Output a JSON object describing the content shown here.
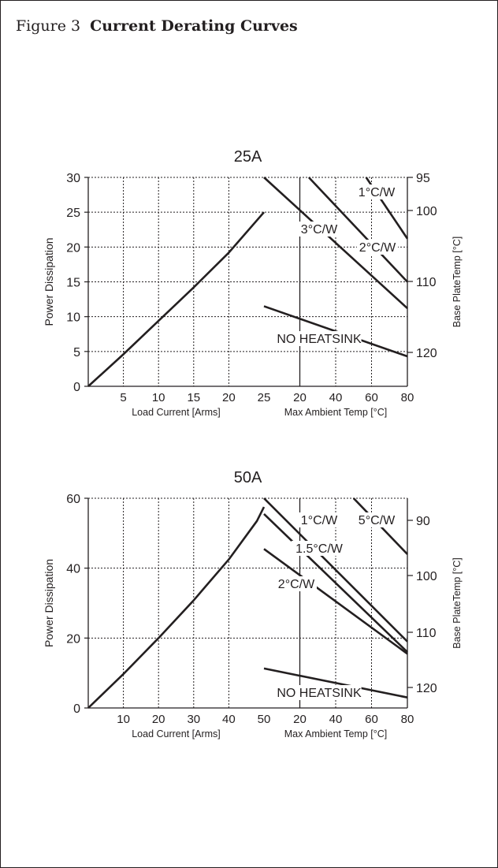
{
  "figure": {
    "label": "Figure 3",
    "title": "Current Derating Curves"
  },
  "chart_data": [
    {
      "type": "line",
      "title": "25A",
      "ylabel": "Power Dissipation",
      "ylabel_right": "Base PlateTemp [°C]",
      "ylim": [
        0,
        30
      ],
      "yticks": [
        "0",
        "5",
        "10",
        "15",
        "20",
        "25",
        "30"
      ],
      "left_xlabel": "Load Current [Arms]",
      "left_xticks": [
        "5",
        "10",
        "15",
        "20",
        "25"
      ],
      "right_xlabel": "Max Ambient Temp [°C]",
      "right_xticks": [
        "20",
        "40",
        "60",
        "80"
      ],
      "right_yticks": [
        "95",
        "100",
        "110",
        "120"
      ],
      "grid": true,
      "load_curve": {
        "x": [
          0,
          5,
          10,
          15,
          20,
          25
        ],
        "y": [
          0,
          4.6,
          9.4,
          14.2,
          19.2,
          25
        ]
      },
      "series": [
        {
          "name": "1°C/W",
          "x": [
            57,
            80
          ],
          "y": [
            30,
            21.2
          ]
        },
        {
          "name": "2°C/W",
          "x": [
            25,
            80
          ],
          "y": [
            30,
            15
          ]
        },
        {
          "name": "3°C/W",
          "x": [
            0,
            80
          ],
          "y": [
            30,
            11.2
          ]
        },
        {
          "name": "NO HEATSINK",
          "x": [
            0,
            80
          ],
          "y": [
            11.5,
            4.3
          ]
        }
      ]
    },
    {
      "type": "line",
      "title": "50A",
      "ylabel": "Power Dissipation",
      "ylabel_right": "Base PlateTemp [°C]",
      "ylim": [
        0,
        60
      ],
      "yticks": [
        "0",
        "20",
        "40",
        "60"
      ],
      "left_xlabel": "Load Current [Arms]",
      "left_xticks": [
        "10",
        "20",
        "30",
        "40",
        "50"
      ],
      "right_xlabel": "Max Ambient Temp [°C]",
      "right_xticks": [
        "20",
        "40",
        "60",
        "80"
      ],
      "right_yticks": [
        "90",
        "100",
        "110",
        "120"
      ],
      "grid": true,
      "load_curve": {
        "x": [
          0,
          10,
          20,
          30,
          40,
          48,
          50
        ],
        "y": [
          0,
          9.7,
          20,
          30.8,
          42.5,
          53.5,
          57.5
        ]
      },
      "series": [
        {
          "name": "5°C/W",
          "x": [
            50,
            80
          ],
          "y": [
            60,
            44
          ]
        },
        {
          "name": "1°C/W",
          "x": [
            0,
            80
          ],
          "y": [
            60,
            19
          ]
        },
        {
          "name": "1.5°C/W",
          "x": [
            0,
            80
          ],
          "y": [
            55.5,
            16
          ]
        },
        {
          "name": "2°C/W",
          "x": [
            0,
            80
          ],
          "y": [
            45.5,
            15.5
          ]
        },
        {
          "name": "NO HEATSINK",
          "x": [
            0,
            80
          ],
          "y": [
            11.3,
            3
          ]
        }
      ]
    }
  ]
}
